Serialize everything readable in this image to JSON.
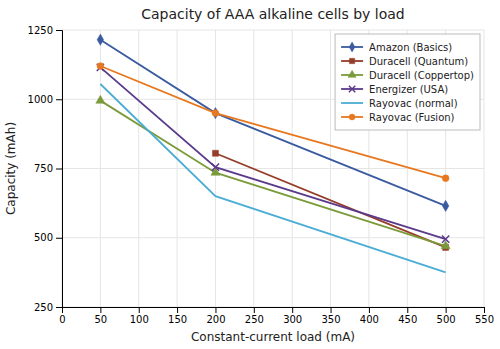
{
  "chart_data": {
    "type": "line",
    "title": "Capacity of AAA alkaline cells by load",
    "xlabel": "Constant-current load (mA)",
    "ylabel": "Capacity (mAh)",
    "xlim": [
      0,
      550
    ],
    "ylim": [
      250,
      1250
    ],
    "xticks": [
      0,
      50,
      100,
      150,
      200,
      250,
      300,
      350,
      400,
      450,
      500,
      550
    ],
    "yticks": [
      250,
      500,
      750,
      1000,
      1250
    ],
    "grid": true,
    "legend": "upper right",
    "series": [
      {
        "name": "Amazon (Basics)",
        "color": "#3A5BA0",
        "marker": "diamond",
        "x": [
          50,
          200,
          500
        ],
        "values": [
          1215,
          950,
          615
        ]
      },
      {
        "name": "Duracell (Quantum)",
        "color": "#963C28",
        "marker": "square",
        "x": [
          200,
          500
        ],
        "values": [
          805,
          465
        ]
      },
      {
        "name": "Duracell (Coppertop)",
        "color": "#7B9B3A",
        "marker": "triangle",
        "x": [
          50,
          200,
          500
        ],
        "values": [
          995,
          735,
          470
        ]
      },
      {
        "name": "Energizer (USA)",
        "color": "#5B3A8C",
        "marker": "x",
        "x": [
          50,
          200,
          500
        ],
        "values": [
          1115,
          755,
          495
        ]
      },
      {
        "name": "Rayovac (normal)",
        "color": "#4BACD4",
        "marker": "none",
        "x": [
          50,
          200,
          500
        ],
        "values": [
          1055,
          650,
          375
        ]
      },
      {
        "name": "Rayovac (Fusion)",
        "color": "#E87820",
        "marker": "circle",
        "x": [
          50,
          200,
          500
        ],
        "values": [
          1120,
          950,
          715
        ]
      }
    ]
  }
}
